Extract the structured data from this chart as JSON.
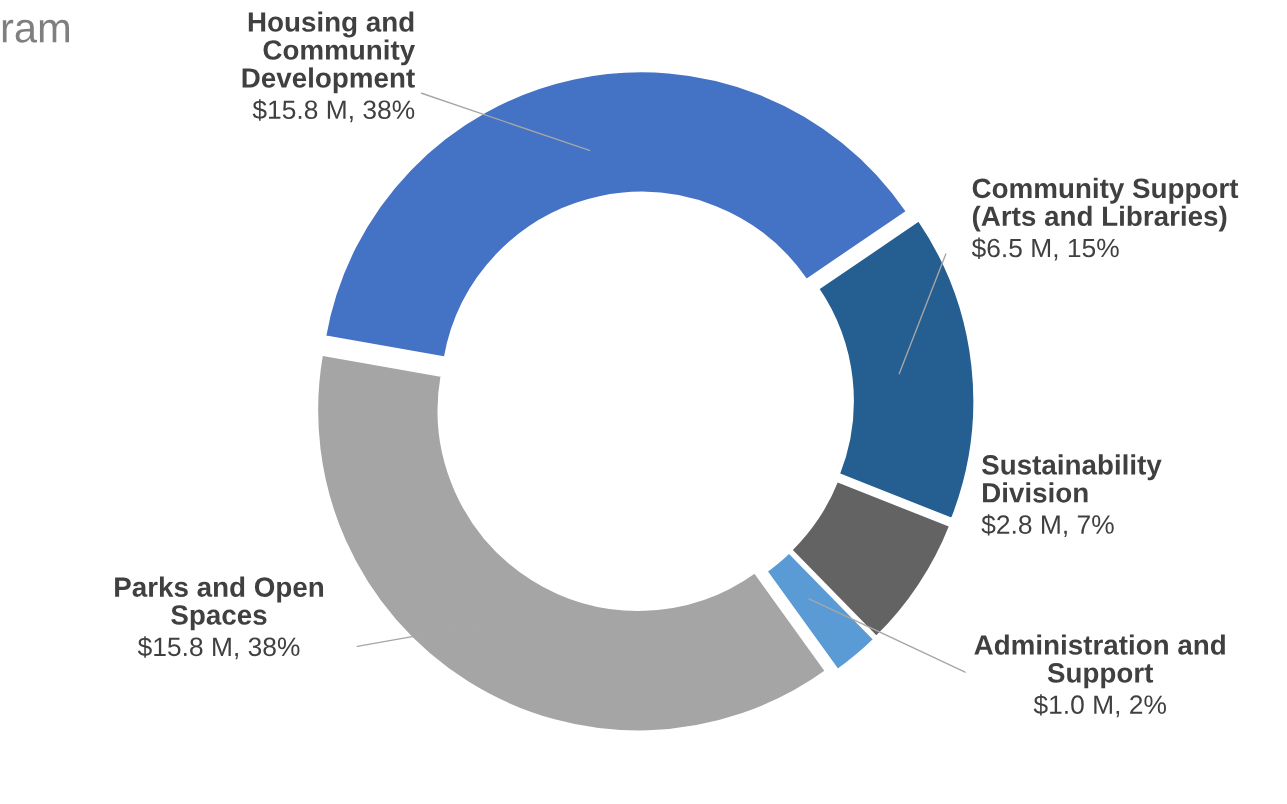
{
  "chart_data": {
    "type": "donut",
    "title": "ram",
    "categories": [
      "Housing and\nCommunity\nDevelopment",
      "Community Support\n(Arts and Libraries)",
      "Sustainability\nDivision",
      "Administration and\nSupport",
      "Parks and Open\nSpaces"
    ],
    "values": [
      15.8,
      6.5,
      2.8,
      1.0,
      15.8
    ],
    "colors": [
      "#4472c4",
      "#255e91",
      "#636363",
      "#5b9bd5",
      "#a5a5a5"
    ],
    "value_labels": [
      "$15.8 M, 38%",
      "$6.5 M, 15%",
      "$2.8 M, 7%",
      "$1.0 M, 2%",
      "$15.8 M, 38%"
    ],
    "legend": false
  }
}
